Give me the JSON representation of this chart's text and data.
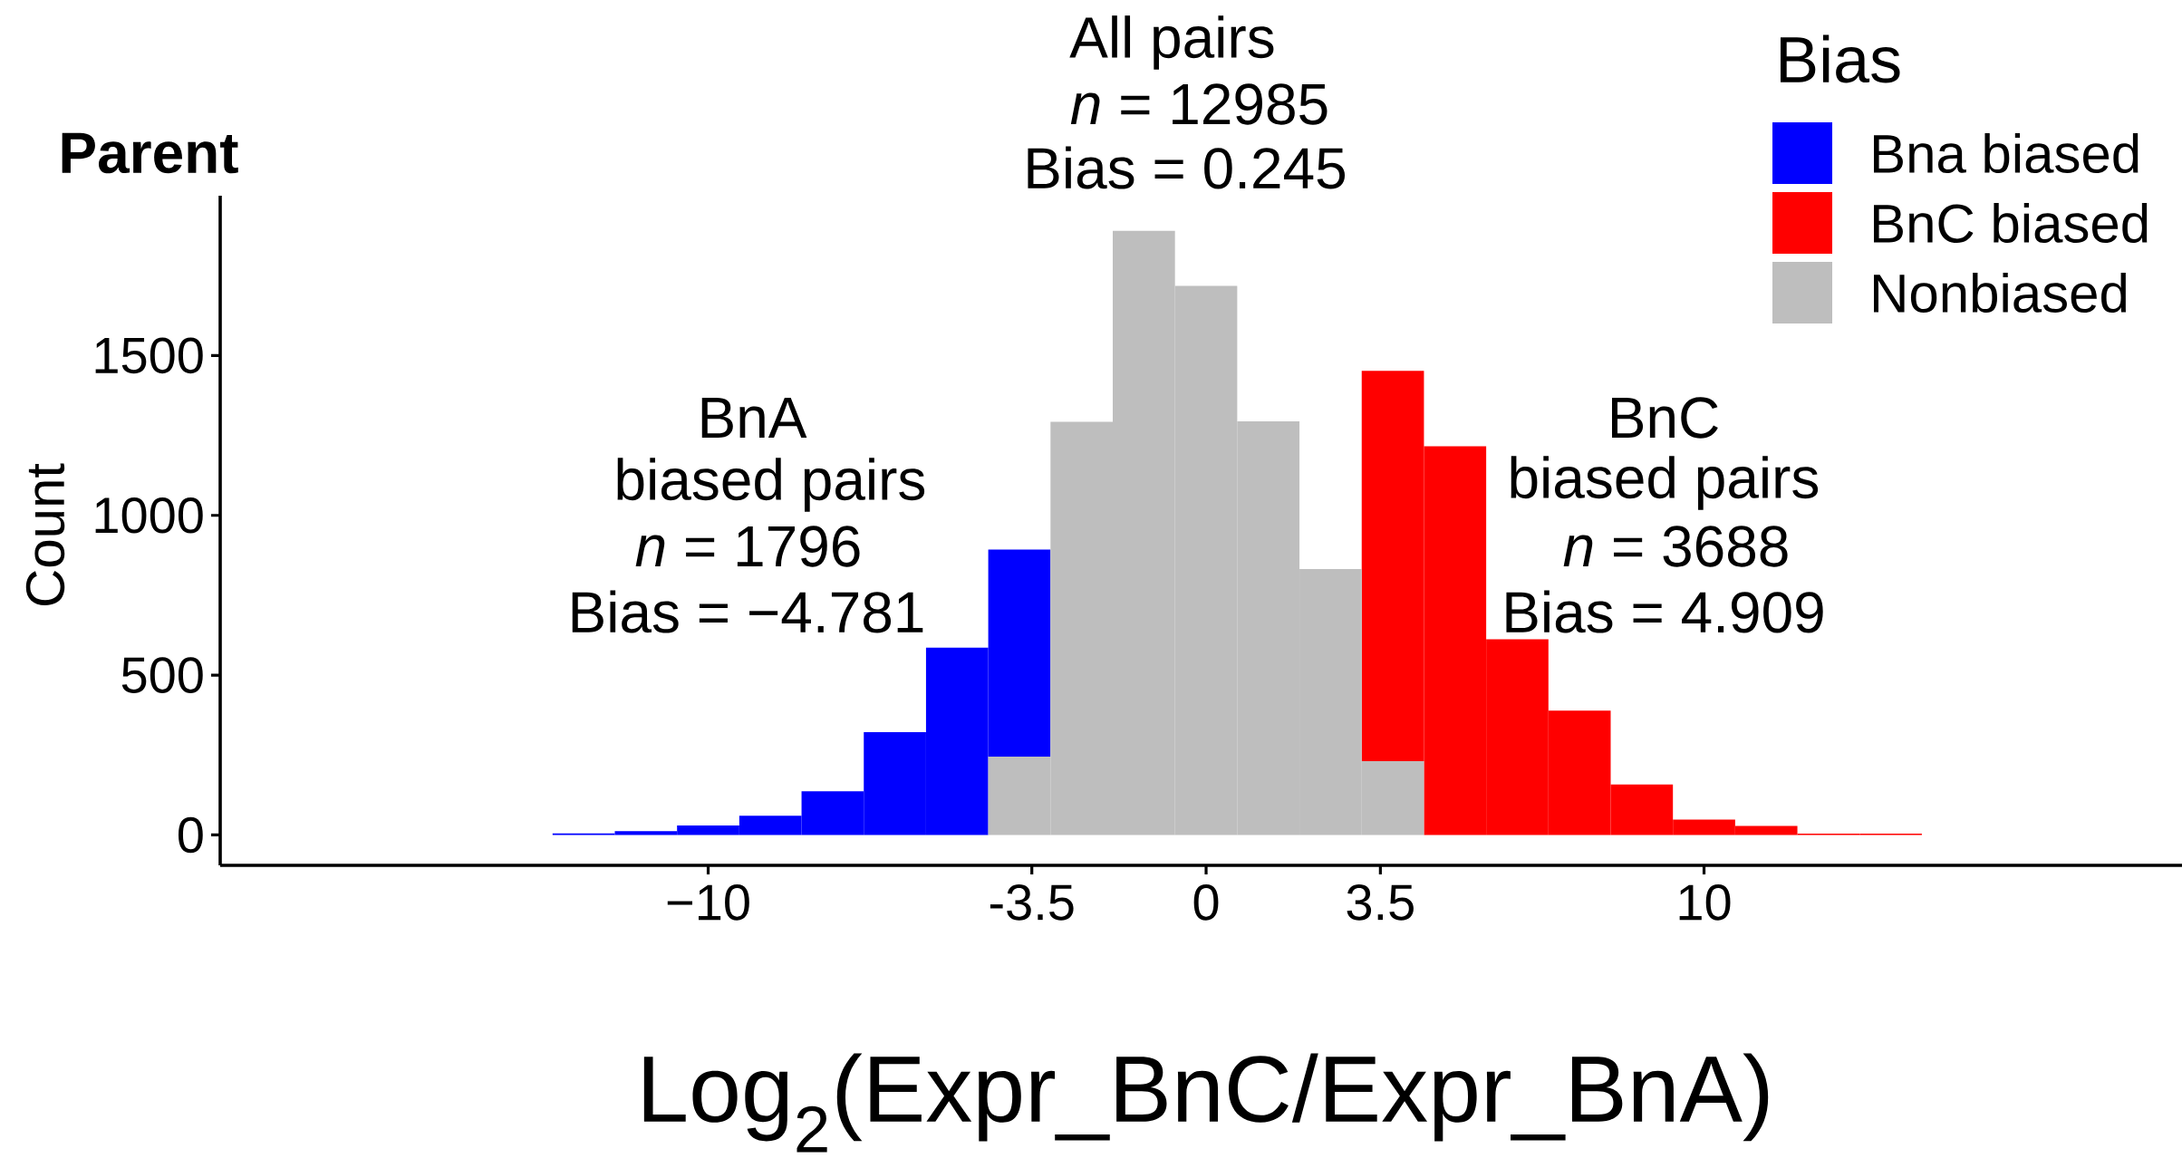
{
  "chart_data": {
    "type": "bar",
    "title": "Parent",
    "xlabel": "Log$_{2}$(Expr_BnC/Expr_BnA)",
    "ylabel": "Count",
    "legend_title": "Bias",
    "x": [
      -12.5,
      -11.25,
      -10,
      -8.75,
      -7.5,
      -6.25,
      -5,
      -3.75,
      -2.5,
      -1.25,
      0,
      1.25,
      2.5,
      3.75,
      5,
      6.25,
      7.5,
      8.75,
      10,
      11.25,
      12.5,
      13.75
    ],
    "stacked": true,
    "series": [
      {
        "name": "Nonbiased",
        "color": "#bebebe",
        "values": [
          null,
          null,
          null,
          null,
          null,
          null,
          null,
          245,
          1293,
          1890,
          1718,
          1294,
          832,
          231,
          null,
          null,
          null,
          null,
          null,
          null,
          null,
          null
        ]
      },
      {
        "name": "Bna biased",
        "color": "#0000ff",
        "values": [
          5,
          12,
          30,
          60,
          137,
          322,
          586,
          648,
          null,
          null,
          null,
          null,
          null,
          null,
          null,
          null,
          null,
          null,
          null,
          null,
          null,
          null
        ]
      },
      {
        "name": "BnC biased",
        "color": "#ff0000",
        "values": [
          null,
          null,
          null,
          null,
          null,
          null,
          null,
          null,
          null,
          null,
          null,
          null,
          null,
          1221,
          1216,
          612,
          389,
          158,
          48,
          28,
          4,
          4
        ]
      }
    ],
    "xlim": [
      -19.8,
      19.6
    ],
    "ylim": [
      -95,
      2000
    ],
    "xticks": [
      {
        "value": -10,
        "label": "−10"
      },
      -3.5,
      0,
      3.5,
      10
    ],
    "yticks": [
      0,
      500,
      1000,
      1500
    ],
    "legend": "top right",
    "annotations": [
      "BnA",
      "biased pairs",
      "*n* = 1796",
      "Bias = −4.781",
      "All pairs",
      "*n* = 12985",
      "Bias = 0.245",
      "BnC",
      "biased pairs",
      "*n* = 3688",
      "Bias = 4.909"
    ]
  }
}
